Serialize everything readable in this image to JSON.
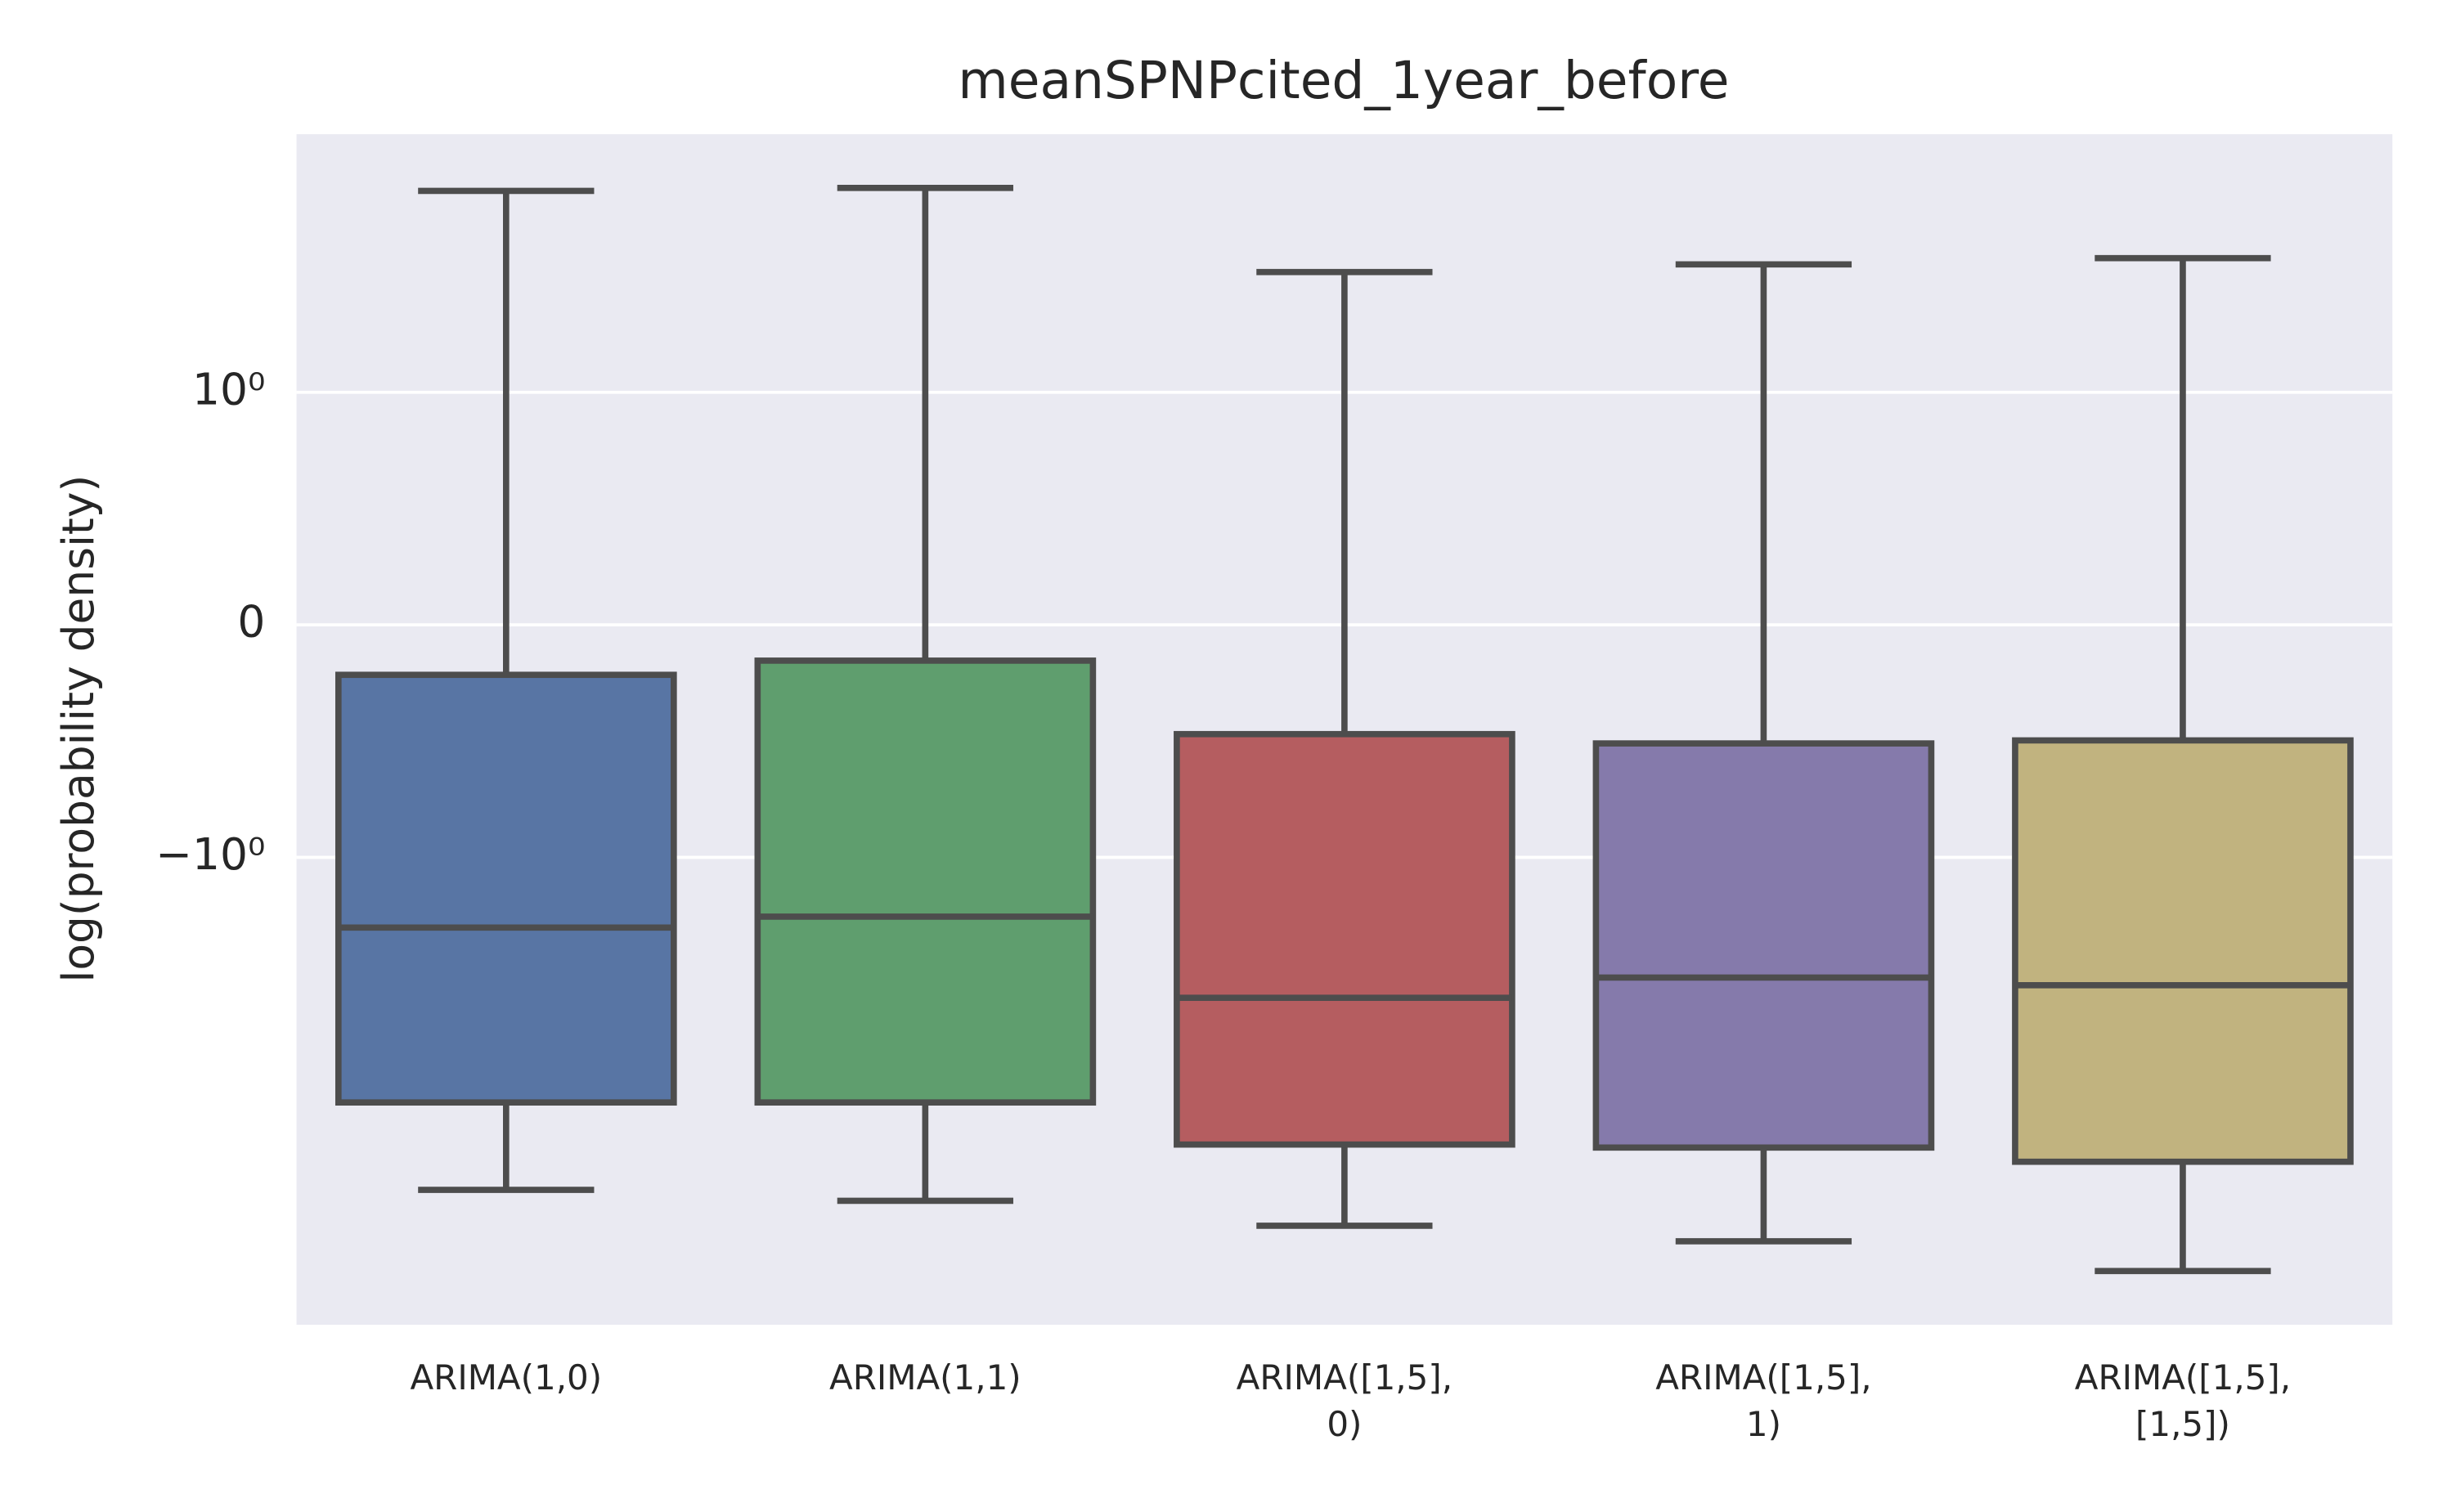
{
  "chart_data": {
    "type": "box",
    "title": "meanSPNPcited_1year_before",
    "y_label": "log(probability density)",
    "categories": [
      "ARIMA(1,0)",
      "ARIMA(1,1)",
      "ARIMA([1,5],\n0)",
      "ARIMA([1,5],\n1)",
      "ARIMA([1,5],\n[1,5])"
    ],
    "colors": [
      "#5875a4",
      "#5f9e6e",
      "#b55d60",
      "#857aab",
      "#c1b37f"
    ],
    "whisker_high": [
      1.866,
      1.879,
      1.517,
      1.55,
      1.577
    ],
    "q3": [
      -0.215,
      -0.154,
      -0.47,
      -0.51,
      -0.497
    ],
    "median": [
      -1.302,
      -1.255,
      -1.604,
      -1.517,
      -1.55
    ],
    "q1": [
      -2.054,
      -2.054,
      -2.235,
      -2.248,
      -2.309
    ],
    "whisker_low": [
      -2.43,
      -2.477,
      -2.584,
      -2.651,
      -2.779
    ],
    "ylim": [
      -3.01,
      2.11
    ],
    "yticks": [
      {
        "value": -1,
        "label": "−10⁰"
      },
      0,
      {
        "value": 1,
        "label": "10⁰"
      }
    ],
    "grid": true
  }
}
